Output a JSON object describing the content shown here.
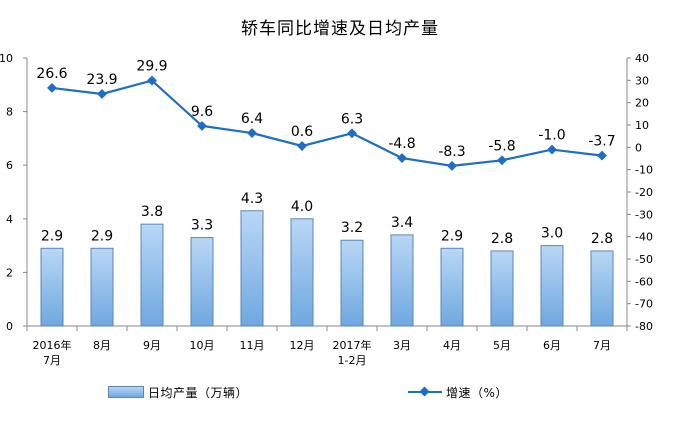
{
  "chart_data": {
    "type": "bar",
    "title": "轿车同比增速及日均产量",
    "categories": [
      [
        "2016年",
        "7月"
      ],
      [
        "8月"
      ],
      [
        "9月"
      ],
      [
        "10月"
      ],
      [
        "11月"
      ],
      [
        "12月"
      ],
      [
        "2017年",
        "1-2月"
      ],
      [
        "3月"
      ],
      [
        "4月"
      ],
      [
        "5月"
      ],
      [
        "6月"
      ],
      [
        "7月"
      ]
    ],
    "series": [
      {
        "name": "日均产量（万辆）",
        "type": "bar",
        "axis": "left",
        "color": "#7fb2e6",
        "values": [
          2.9,
          2.9,
          3.8,
          3.3,
          4.3,
          4.0,
          3.2,
          3.4,
          2.9,
          2.8,
          3.0,
          2.8
        ],
        "labels": [
          "2.9",
          "2.9",
          "3.8",
          "3.3",
          "4.3",
          "4.0",
          "3.2",
          "3.4",
          "2.9",
          "2.8",
          "3.0",
          "2.8"
        ]
      },
      {
        "name": "增速（%）",
        "type": "line",
        "axis": "right",
        "color": "#1f6ec4",
        "marker": "diamond",
        "values": [
          26.6,
          23.9,
          29.9,
          9.6,
          6.4,
          0.6,
          6.3,
          -4.8,
          -8.3,
          -5.8,
          -1.0,
          -3.7
        ],
        "labels": [
          "26.6",
          "23.9",
          "29.9",
          "9.6",
          "6.4",
          "0.6",
          "6.3",
          "-4.8",
          "-8.3",
          "-5.8",
          "-1.0",
          "-3.7"
        ]
      }
    ],
    "y_left": {
      "ylim": [
        0,
        10
      ],
      "ticks": [
        "0",
        "2",
        "4",
        "6",
        "8",
        "10"
      ]
    },
    "y_right": {
      "ylim": [
        -80,
        40
      ],
      "ticks": [
        "-80",
        "-70",
        "-60",
        "-50",
        "-40",
        "-30",
        "-20",
        "-10",
        "0",
        "10",
        "20",
        "30",
        "40"
      ]
    },
    "grid": false,
    "legend_position": "bottom"
  }
}
